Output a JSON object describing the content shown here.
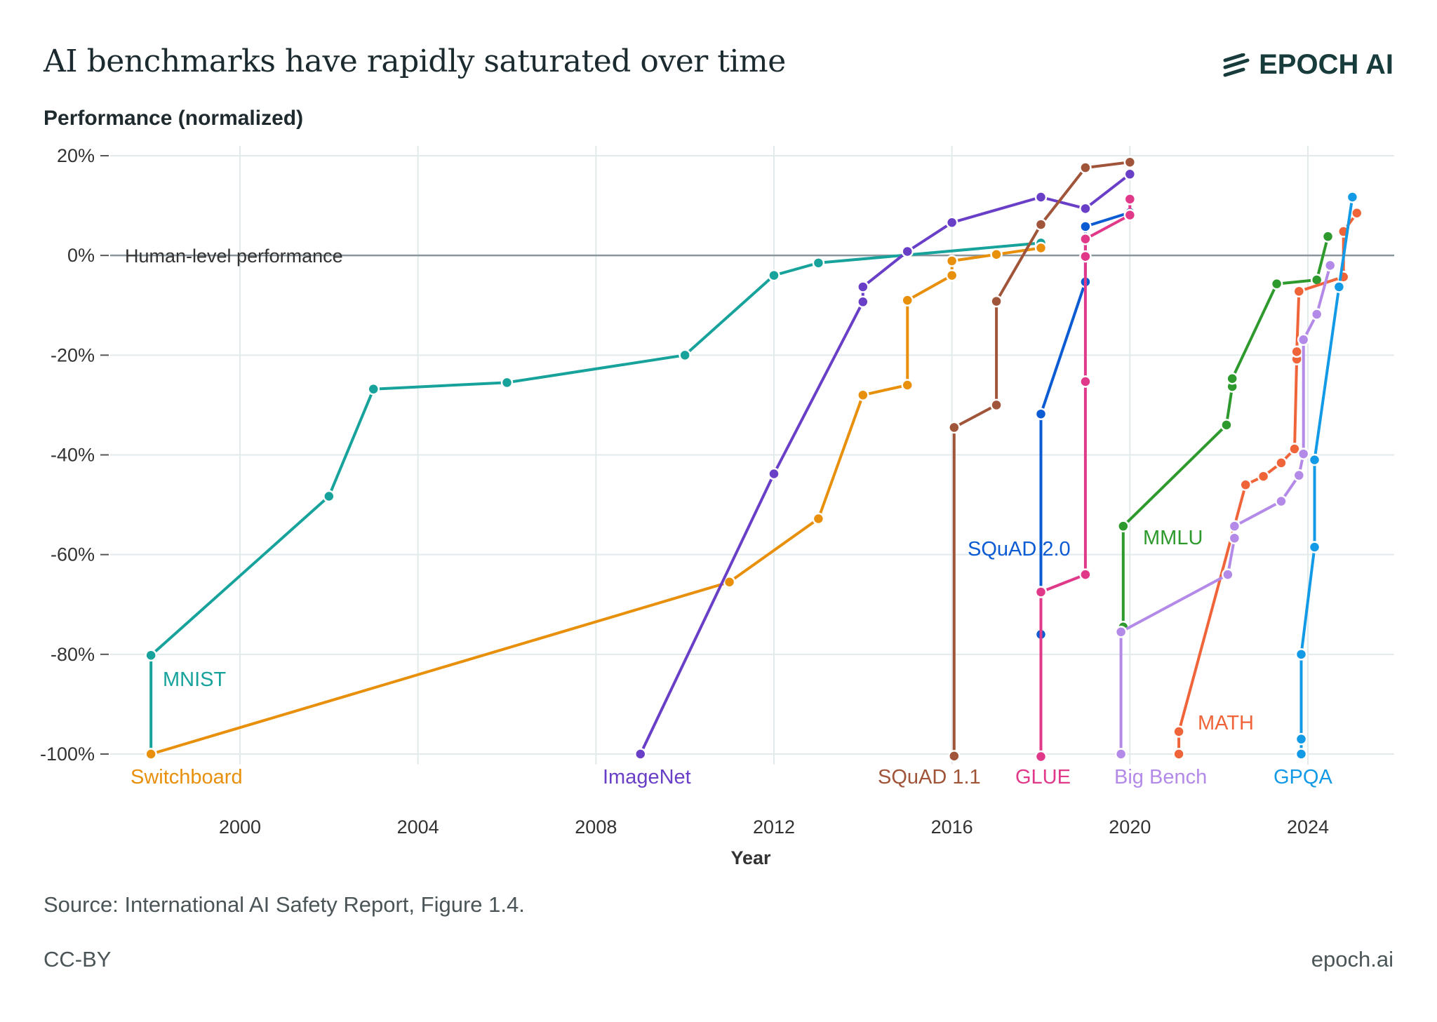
{
  "header": {
    "title": "AI benchmarks have rapidly saturated over time",
    "logo_text": "EPOCH AI"
  },
  "footer": {
    "source": "Source: International AI Safety Report, Figure 1.4.",
    "license": "CC-BY",
    "site": "epoch.ai"
  },
  "chart_data": {
    "type": "line",
    "title": "AI benchmarks have rapidly saturated over time",
    "xlabel": "Year",
    "ylabel": "Performance (normalized)",
    "xlim": [
      1997.1,
      2025.9
    ],
    "ylim": [
      -100,
      20
    ],
    "x_ticks": [
      2000,
      2004,
      2008,
      2012,
      2016,
      2020,
      2024
    ],
    "y_ticks": [
      20,
      0,
      -20,
      -40,
      -60,
      -80,
      -100
    ],
    "y_tick_labels": [
      "20%",
      "0%",
      "-20%",
      "-40%",
      "-60%",
      "-80%",
      "-100%"
    ],
    "grid": true,
    "reference_line": {
      "y": 0,
      "label": "Human-level performance",
      "color": "#8a969b"
    },
    "series": [
      {
        "name": "MNIST",
        "color": "#17a39b",
        "points": [
          [
            1998,
            -100
          ],
          [
            1998,
            -80.2
          ],
          [
            2002,
            -48.3
          ],
          [
            2003,
            -26.8
          ],
          [
            2006,
            -25.5
          ],
          [
            2010,
            -20
          ],
          [
            2012,
            -4
          ],
          [
            2013,
            -1.5
          ],
          [
            2018,
            2.5
          ]
        ]
      },
      {
        "name": "Switchboard",
        "color": "#e8900c",
        "points": [
          [
            1998,
            -100
          ],
          [
            2011,
            -65.5
          ],
          [
            2013,
            -52.8
          ],
          [
            2014,
            -28
          ],
          [
            2015,
            -26
          ],
          [
            2015,
            -9
          ],
          [
            2016,
            -4
          ],
          [
            2016,
            -1.1
          ],
          [
            2017,
            0.2
          ],
          [
            2018,
            1.5
          ]
        ]
      },
      {
        "name": "ImageNet",
        "color": "#6a3fc8",
        "points": [
          [
            2009,
            -100
          ],
          [
            2012,
            -43.8
          ],
          [
            2014,
            -9.3
          ],
          [
            2014,
            -6.3
          ],
          [
            2015,
            0.8
          ],
          [
            2016,
            6.6
          ],
          [
            2018,
            11.7
          ],
          [
            2019,
            9.4
          ],
          [
            2020,
            16.3
          ]
        ]
      },
      {
        "name": "SQuAD 1.1",
        "color": "#a0553a",
        "points": [
          [
            2016.05,
            -100.4
          ],
          [
            2016.05,
            -34.5
          ],
          [
            2017,
            -30
          ],
          [
            2017,
            -9.2
          ],
          [
            2018,
            6.2
          ],
          [
            2019,
            17.6
          ],
          [
            2020,
            18.7
          ]
        ]
      },
      {
        "name": "SQuAD 2.0",
        "color": "#0b5bd3",
        "points": [
          [
            2018,
            -76
          ],
          [
            2018,
            -31.8
          ],
          [
            2019,
            -5.3
          ],
          [
            2019,
            5.8
          ],
          [
            2020,
            8.6
          ]
        ]
      },
      {
        "name": "GLUE",
        "color": "#e0398a",
        "points": [
          [
            2018,
            -100.5
          ],
          [
            2018,
            -67.5
          ],
          [
            2019,
            -64
          ],
          [
            2019,
            -25.3
          ],
          [
            2019,
            -0.2
          ],
          [
            2019,
            3.3
          ],
          [
            2020,
            8.1
          ],
          [
            2020,
            11.3
          ]
        ]
      },
      {
        "name": "MMLU",
        "color": "#2e9a2e",
        "points": [
          [
            2019.85,
            -74.5
          ],
          [
            2019.85,
            -54.3
          ],
          [
            2022.17,
            -34
          ],
          [
            2022.3,
            -26.3
          ],
          [
            2022.3,
            -24.7
          ],
          [
            2023.3,
            -5.7
          ],
          [
            2024.2,
            -4.9
          ],
          [
            2024.45,
            3.8
          ]
        ]
      },
      {
        "name": "MATH",
        "color": "#f0643a",
        "points": [
          [
            2021.1,
            -100
          ],
          [
            2021.1,
            -95.5
          ],
          [
            2022.6,
            -46
          ],
          [
            2023.0,
            -44.3
          ],
          [
            2023.4,
            -41.6
          ],
          [
            2023.7,
            -38.8
          ],
          [
            2023.75,
            -20.8
          ],
          [
            2023.75,
            -19.3
          ],
          [
            2023.8,
            -7.2
          ],
          [
            2024.8,
            -4.3
          ],
          [
            2024.8,
            4.8
          ],
          [
            2025.1,
            8.5
          ]
        ]
      },
      {
        "name": "Big Bench",
        "color": "#b38ae8",
        "points": [
          [
            2019.8,
            -100
          ],
          [
            2019.8,
            -75.5
          ],
          [
            2022.2,
            -64
          ],
          [
            2022.35,
            -56.7
          ],
          [
            2022.35,
            -54.3
          ],
          [
            2023.4,
            -49.3
          ],
          [
            2023.8,
            -44.1
          ],
          [
            2023.9,
            -39.8
          ],
          [
            2023.9,
            -16.9
          ],
          [
            2024.2,
            -11.8
          ],
          [
            2024.5,
            -2
          ]
        ]
      },
      {
        "name": "GPQA",
        "color": "#139ae6",
        "points": [
          [
            2023.85,
            -100
          ],
          [
            2023.85,
            -97
          ],
          [
            2023.85,
            -80
          ],
          [
            2024.15,
            -58.5
          ],
          [
            2024.15,
            -41
          ],
          [
            2024.7,
            -6.3
          ],
          [
            2025.0,
            11.7
          ]
        ]
      }
    ]
  }
}
